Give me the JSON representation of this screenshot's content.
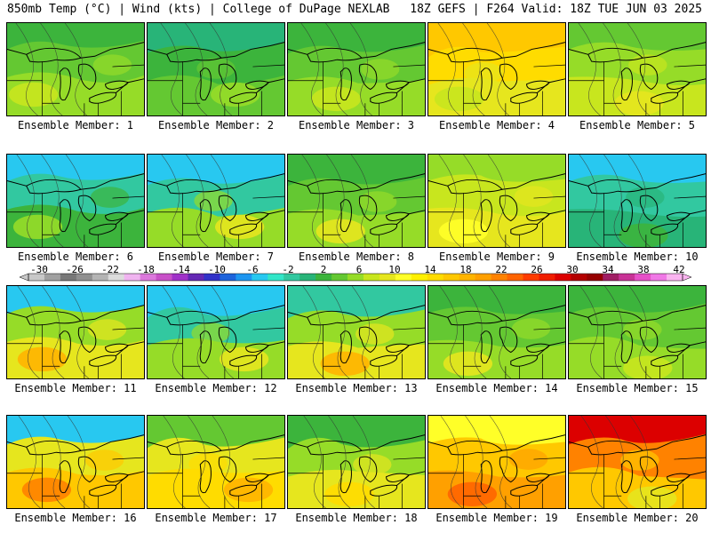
{
  "header": {
    "left": "850mb Temp (°C) | Wind (kts) | College of DuPage NEXLAB",
    "right": "18Z GEFS | F264 Valid: 18Z TUE JUN 03 2025"
  },
  "colorbar": {
    "tick_labels": [
      "-30",
      "-26",
      "-22",
      "-18",
      "-14",
      "-10",
      "-6",
      "-2",
      "2",
      "6",
      "10",
      "14",
      "18",
      "22",
      "26",
      "30",
      "34",
      "38",
      "42"
    ],
    "colors": [
      "#c8c8c8",
      "#a0a0a0",
      "#787878",
      "#909090",
      "#b4b4b4",
      "#dcdcdc",
      "#f0b4f0",
      "#dc78dc",
      "#c850c8",
      "#a032c8",
      "#6428b4",
      "#3232c8",
      "#1e64dc",
      "#1e96f0",
      "#28c8f0",
      "#32e6c8",
      "#32c8a0",
      "#28b478",
      "#3cb43c",
      "#64c832",
      "#96dc28",
      "#c8e61e",
      "#e6e61e",
      "#ffff28",
      "#fff000",
      "#ffdc00",
      "#ffc800",
      "#ffb400",
      "#ffa000",
      "#ff8200",
      "#ff6400",
      "#ff3c00",
      "#f01e00",
      "#dc0000",
      "#b40000",
      "#960000",
      "#a01e64",
      "#c83296",
      "#e650c8",
      "#f078e6",
      "#fab4f0"
    ]
  },
  "members": [
    {
      "label": "Ensemble Member: 1",
      "palette": [
        "#3cb43c",
        "#64c832",
        "#96dc28",
        "#c8e61e"
      ]
    },
    {
      "label": "Ensemble Member: 2",
      "palette": [
        "#28b478",
        "#3cb43c",
        "#64c832",
        "#96dc28"
      ]
    },
    {
      "label": "Ensemble Member: 3",
      "palette": [
        "#3cb43c",
        "#64c832",
        "#96dc28",
        "#c8e61e"
      ]
    },
    {
      "label": "Ensemble Member: 4",
      "palette": [
        "#ffc800",
        "#ffdc00",
        "#e6e61e",
        "#c8e61e"
      ]
    },
    {
      "label": "Ensemble Member: 5",
      "palette": [
        "#64c832",
        "#96dc28",
        "#c8e61e",
        "#e6e61e"
      ]
    },
    {
      "label": "Ensemble Member: 6",
      "palette": [
        "#28c8f0",
        "#32c8a0",
        "#3cb43c",
        "#96dc28"
      ]
    },
    {
      "label": "Ensemble Member: 7",
      "palette": [
        "#28c8f0",
        "#32c8a0",
        "#96dc28",
        "#e6e61e"
      ]
    },
    {
      "label": "Ensemble Member: 8",
      "palette": [
        "#3cb43c",
        "#64c832",
        "#96dc28",
        "#e6e61e"
      ]
    },
    {
      "label": "Ensemble Member: 9",
      "palette": [
        "#96dc28",
        "#c8e61e",
        "#e6e61e",
        "#ffff28"
      ]
    },
    {
      "label": "Ensemble Member: 10",
      "palette": [
        "#28c8f0",
        "#32c8a0",
        "#28b478",
        "#3cb43c"
      ]
    },
    {
      "label": "Ensemble Member: 11",
      "palette": [
        "#28c8f0",
        "#96dc28",
        "#e6e61e",
        "#ffb400"
      ]
    },
    {
      "label": "Ensemble Member: 12",
      "palette": [
        "#28c8f0",
        "#32c8a0",
        "#96dc28",
        "#e6e61e"
      ]
    },
    {
      "label": "Ensemble Member: 13",
      "palette": [
        "#32c8a0",
        "#96dc28",
        "#e6e61e",
        "#ffb400"
      ]
    },
    {
      "label": "Ensemble Member: 14",
      "palette": [
        "#3cb43c",
        "#64c832",
        "#96dc28",
        "#e6e61e"
      ]
    },
    {
      "label": "Ensemble Member: 15",
      "palette": [
        "#3cb43c",
        "#64c832",
        "#96dc28",
        "#c8e61e"
      ]
    },
    {
      "label": "Ensemble Member: 16",
      "palette": [
        "#28c8f0",
        "#e6e61e",
        "#ffc800",
        "#ff8200"
      ]
    },
    {
      "label": "Ensemble Member: 17",
      "palette": [
        "#64c832",
        "#e6e61e",
        "#ffdc00",
        "#ffb400"
      ]
    },
    {
      "label": "Ensemble Member: 18",
      "palette": [
        "#3cb43c",
        "#96dc28",
        "#e6e61e",
        "#ffdc00"
      ]
    },
    {
      "label": "Ensemble Member: 19",
      "palette": [
        "#ffff28",
        "#ffc800",
        "#ffa000",
        "#ff6400"
      ]
    },
    {
      "label": "Ensemble Member: 20",
      "palette": [
        "#dc0000",
        "#ff8200",
        "#ffc800",
        "#e6e61e"
      ]
    }
  ]
}
